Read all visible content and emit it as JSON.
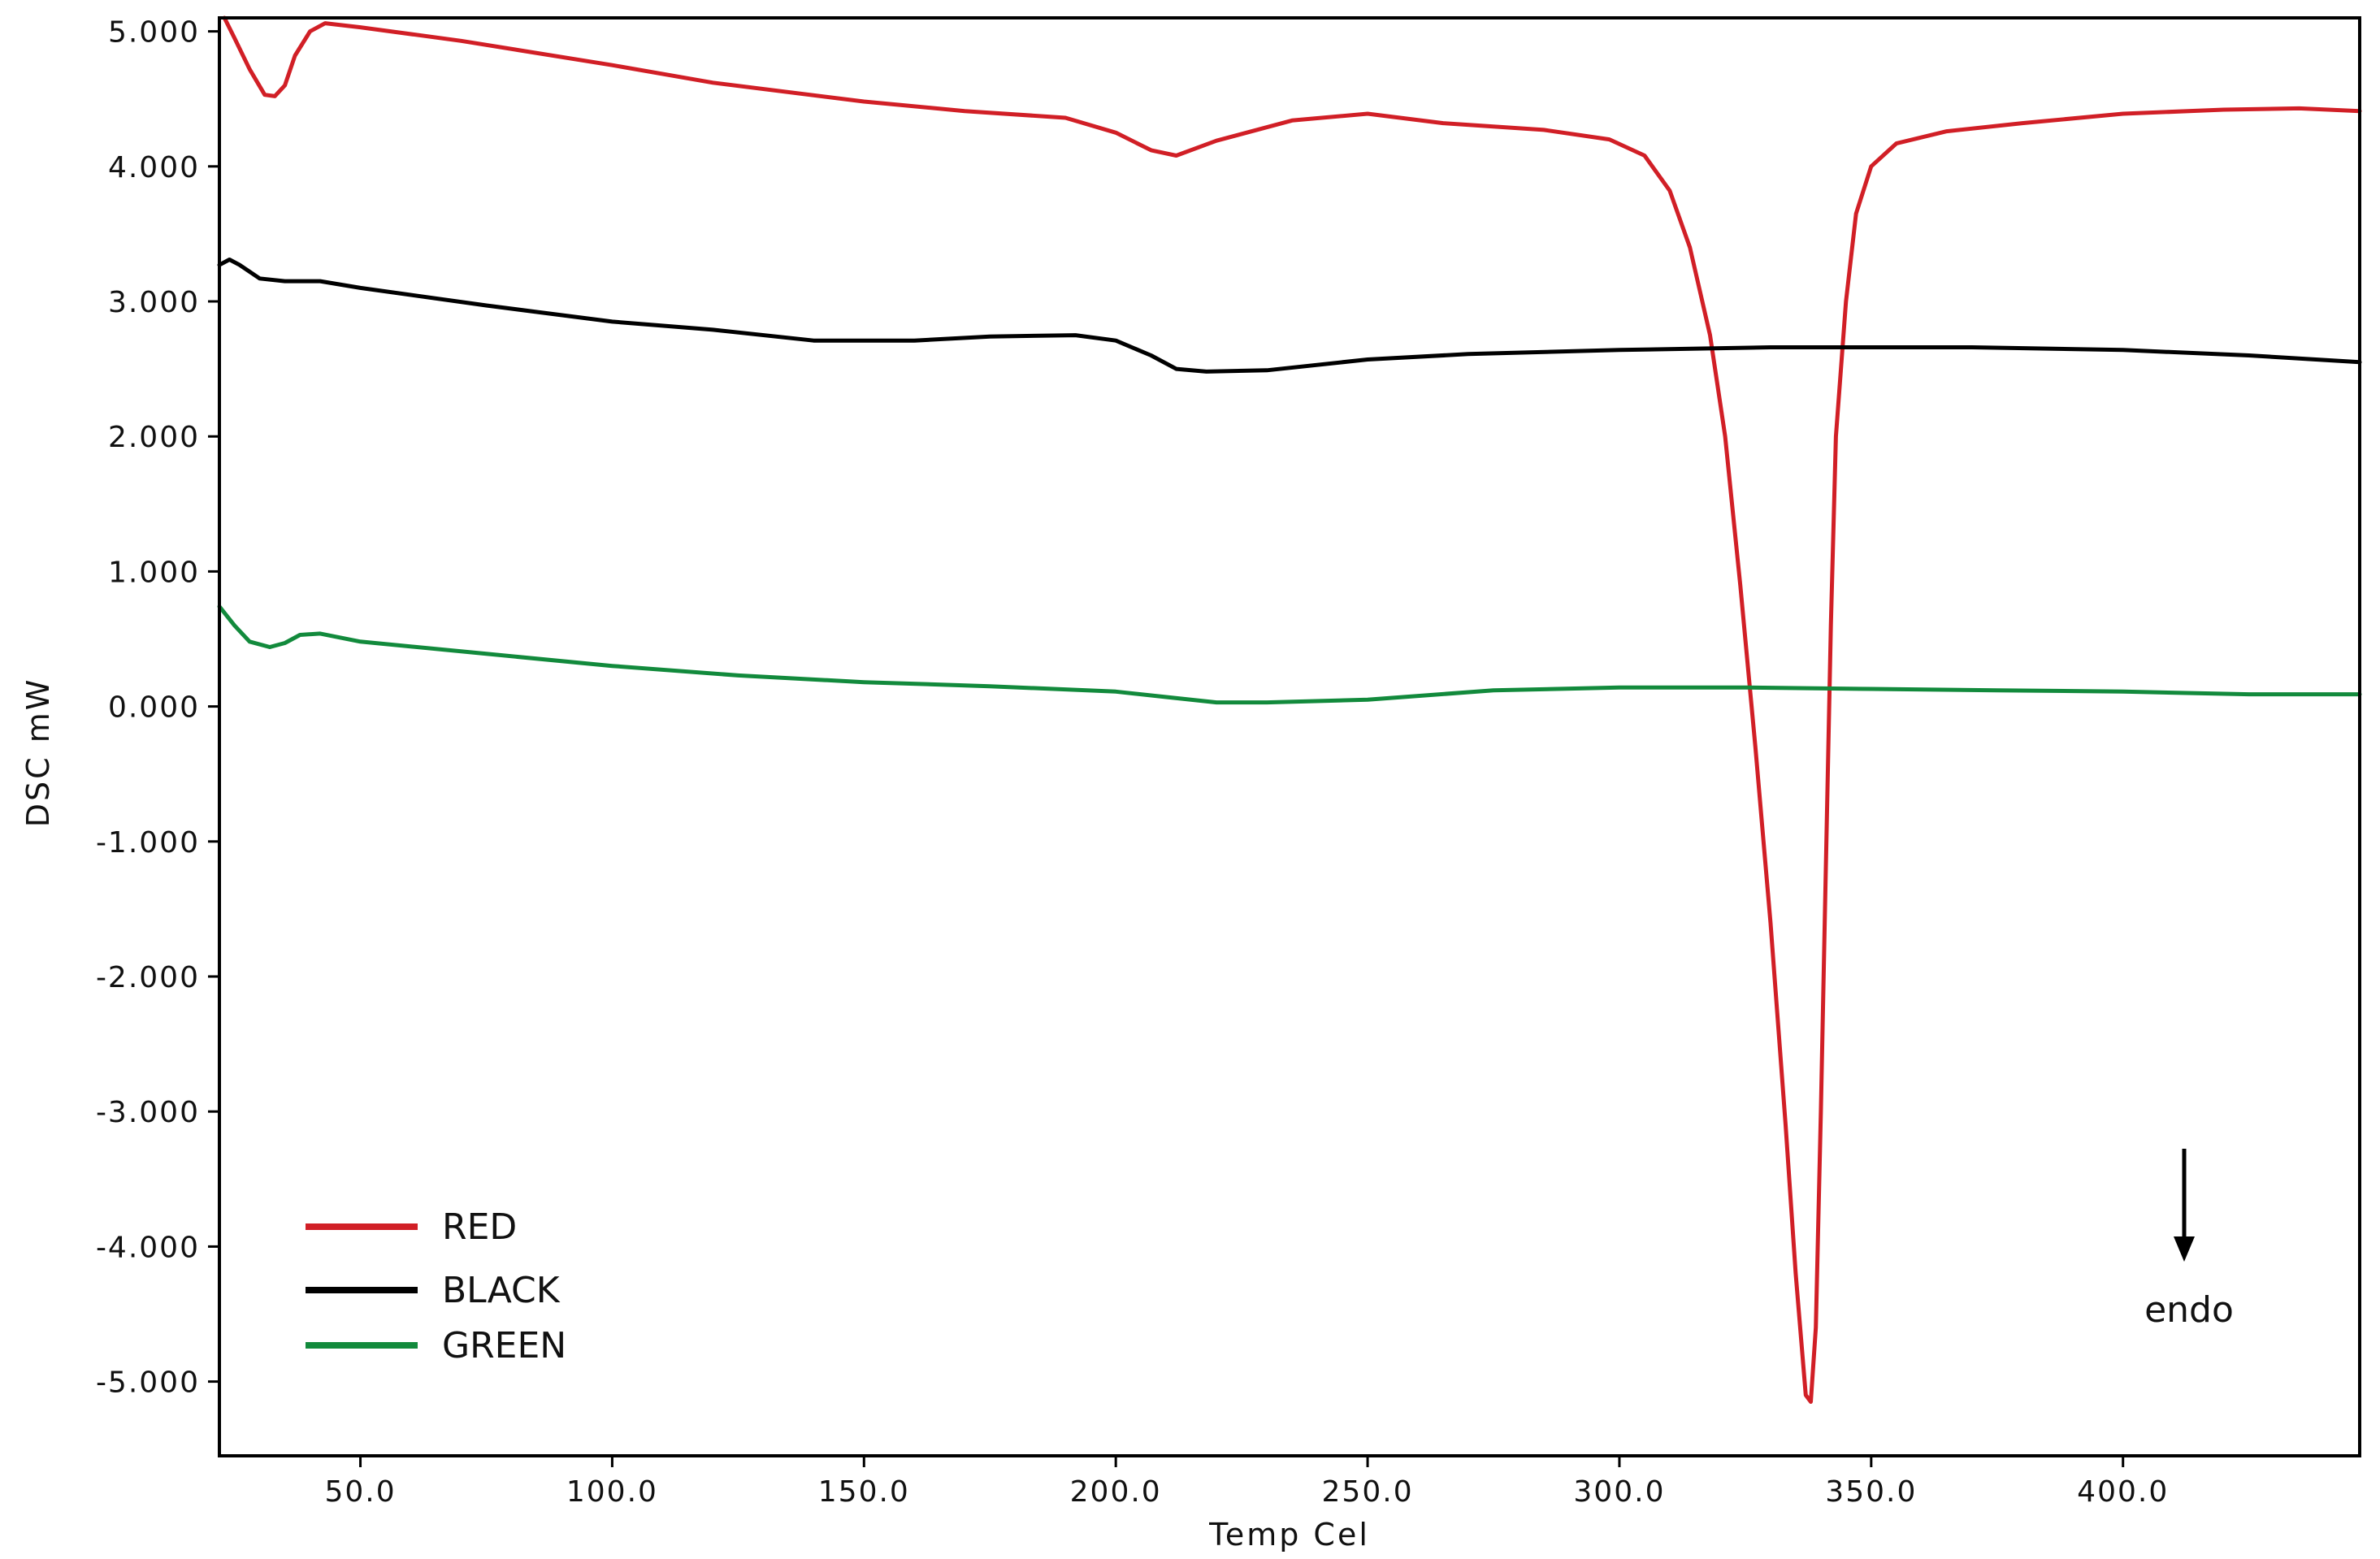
{
  "chart_data": {
    "type": "line",
    "xlabel": "Temp Cel",
    "ylabel": "DSC mW",
    "xlim": [
      22,
      447
    ],
    "ylim": [
      -5.55,
      5.1
    ],
    "xticks": [
      50,
      100,
      150,
      200,
      250,
      300,
      350,
      400
    ],
    "xtick_labels": [
      "50.0",
      "100.0",
      "150.0",
      "200.0",
      "250.0",
      "300.0",
      "350.0",
      "400.0"
    ],
    "yticks": [
      5,
      4,
      3,
      2,
      1,
      0,
      -1,
      -2,
      -3,
      -4,
      -5
    ],
    "ytick_labels": [
      "5.000",
      "4.000",
      "3.000",
      "2.000",
      "1.000",
      "0.000",
      "-1.000",
      "-2.000",
      "-3.000",
      "-4.000",
      "-5.000"
    ],
    "grid": false,
    "legend": {
      "position": "bottom-left",
      "entries": [
        {
          "label": "RED",
          "color": "#d11f26"
        },
        {
          "label": "BLACK",
          "color": "#000000"
        },
        {
          "label": "GREEN",
          "color": "#128a3c"
        }
      ]
    },
    "annotation": {
      "text": "endo",
      "arrow": "down",
      "x": 412
    },
    "series": [
      {
        "name": "RED",
        "color": "#d11f26",
        "points": [
          [
            23,
            5.1
          ],
          [
            25,
            4.95
          ],
          [
            28,
            4.72
          ],
          [
            31,
            4.53
          ],
          [
            33,
            4.52
          ],
          [
            35,
            4.6
          ],
          [
            37,
            4.82
          ],
          [
            40,
            5.0
          ],
          [
            43,
            5.06
          ],
          [
            50,
            5.03
          ],
          [
            70,
            4.93
          ],
          [
            100,
            4.75
          ],
          [
            120,
            4.62
          ],
          [
            150,
            4.48
          ],
          [
            170,
            4.41
          ],
          [
            190,
            4.36
          ],
          [
            200,
            4.25
          ],
          [
            207,
            4.12
          ],
          [
            212,
            4.08
          ],
          [
            220,
            4.19
          ],
          [
            235,
            4.34
          ],
          [
            250,
            4.39
          ],
          [
            265,
            4.32
          ],
          [
            285,
            4.27
          ],
          [
            298,
            4.2
          ],
          [
            305,
            4.08
          ],
          [
            310,
            3.82
          ],
          [
            314,
            3.4
          ],
          [
            318,
            2.75
          ],
          [
            321,
            2.0
          ],
          [
            324,
            0.9
          ],
          [
            327,
            -0.3
          ],
          [
            330,
            -1.6
          ],
          [
            333,
            -3.1
          ],
          [
            335,
            -4.2
          ],
          [
            337,
            -5.1
          ],
          [
            338,
            -5.15
          ],
          [
            339,
            -4.6
          ],
          [
            340,
            -3.0
          ],
          [
            341,
            -1.2
          ],
          [
            342,
            0.6
          ],
          [
            343,
            2.0
          ],
          [
            345,
            3.0
          ],
          [
            347,
            3.65
          ],
          [
            350,
            4.0
          ],
          [
            355,
            4.17
          ],
          [
            365,
            4.26
          ],
          [
            380,
            4.32
          ],
          [
            400,
            4.39
          ],
          [
            420,
            4.42
          ],
          [
            435,
            4.43
          ],
          [
            447,
            4.41
          ]
        ]
      },
      {
        "name": "BLACK",
        "color": "#000000",
        "points": [
          [
            22,
            3.27
          ],
          [
            24,
            3.31
          ],
          [
            26,
            3.27
          ],
          [
            30,
            3.17
          ],
          [
            35,
            3.15
          ],
          [
            42,
            3.15
          ],
          [
            50,
            3.1
          ],
          [
            75,
            2.97
          ],
          [
            100,
            2.85
          ],
          [
            120,
            2.79
          ],
          [
            140,
            2.71
          ],
          [
            160,
            2.71
          ],
          [
            175,
            2.74
          ],
          [
            192,
            2.75
          ],
          [
            200,
            2.71
          ],
          [
            207,
            2.6
          ],
          [
            212,
            2.5
          ],
          [
            218,
            2.48
          ],
          [
            230,
            2.49
          ],
          [
            250,
            2.57
          ],
          [
            270,
            2.61
          ],
          [
            300,
            2.64
          ],
          [
            330,
            2.66
          ],
          [
            370,
            2.66
          ],
          [
            400,
            2.64
          ],
          [
            425,
            2.6
          ],
          [
            447,
            2.55
          ]
        ]
      },
      {
        "name": "GREEN",
        "color": "#128a3c",
        "points": [
          [
            22,
            0.74
          ],
          [
            25,
            0.6
          ],
          [
            28,
            0.48
          ],
          [
            32,
            0.44
          ],
          [
            35,
            0.47
          ],
          [
            38,
            0.53
          ],
          [
            42,
            0.54
          ],
          [
            50,
            0.48
          ],
          [
            75,
            0.39
          ],
          [
            100,
            0.3
          ],
          [
            125,
            0.23
          ],
          [
            150,
            0.18
          ],
          [
            175,
            0.15
          ],
          [
            200,
            0.11
          ],
          [
            210,
            0.07
          ],
          [
            220,
            0.03
          ],
          [
            230,
            0.03
          ],
          [
            250,
            0.05
          ],
          [
            275,
            0.12
          ],
          [
            300,
            0.14
          ],
          [
            325,
            0.14
          ],
          [
            350,
            0.13
          ],
          [
            375,
            0.12
          ],
          [
            400,
            0.11
          ],
          [
            425,
            0.09
          ],
          [
            447,
            0.09
          ]
        ]
      }
    ]
  }
}
